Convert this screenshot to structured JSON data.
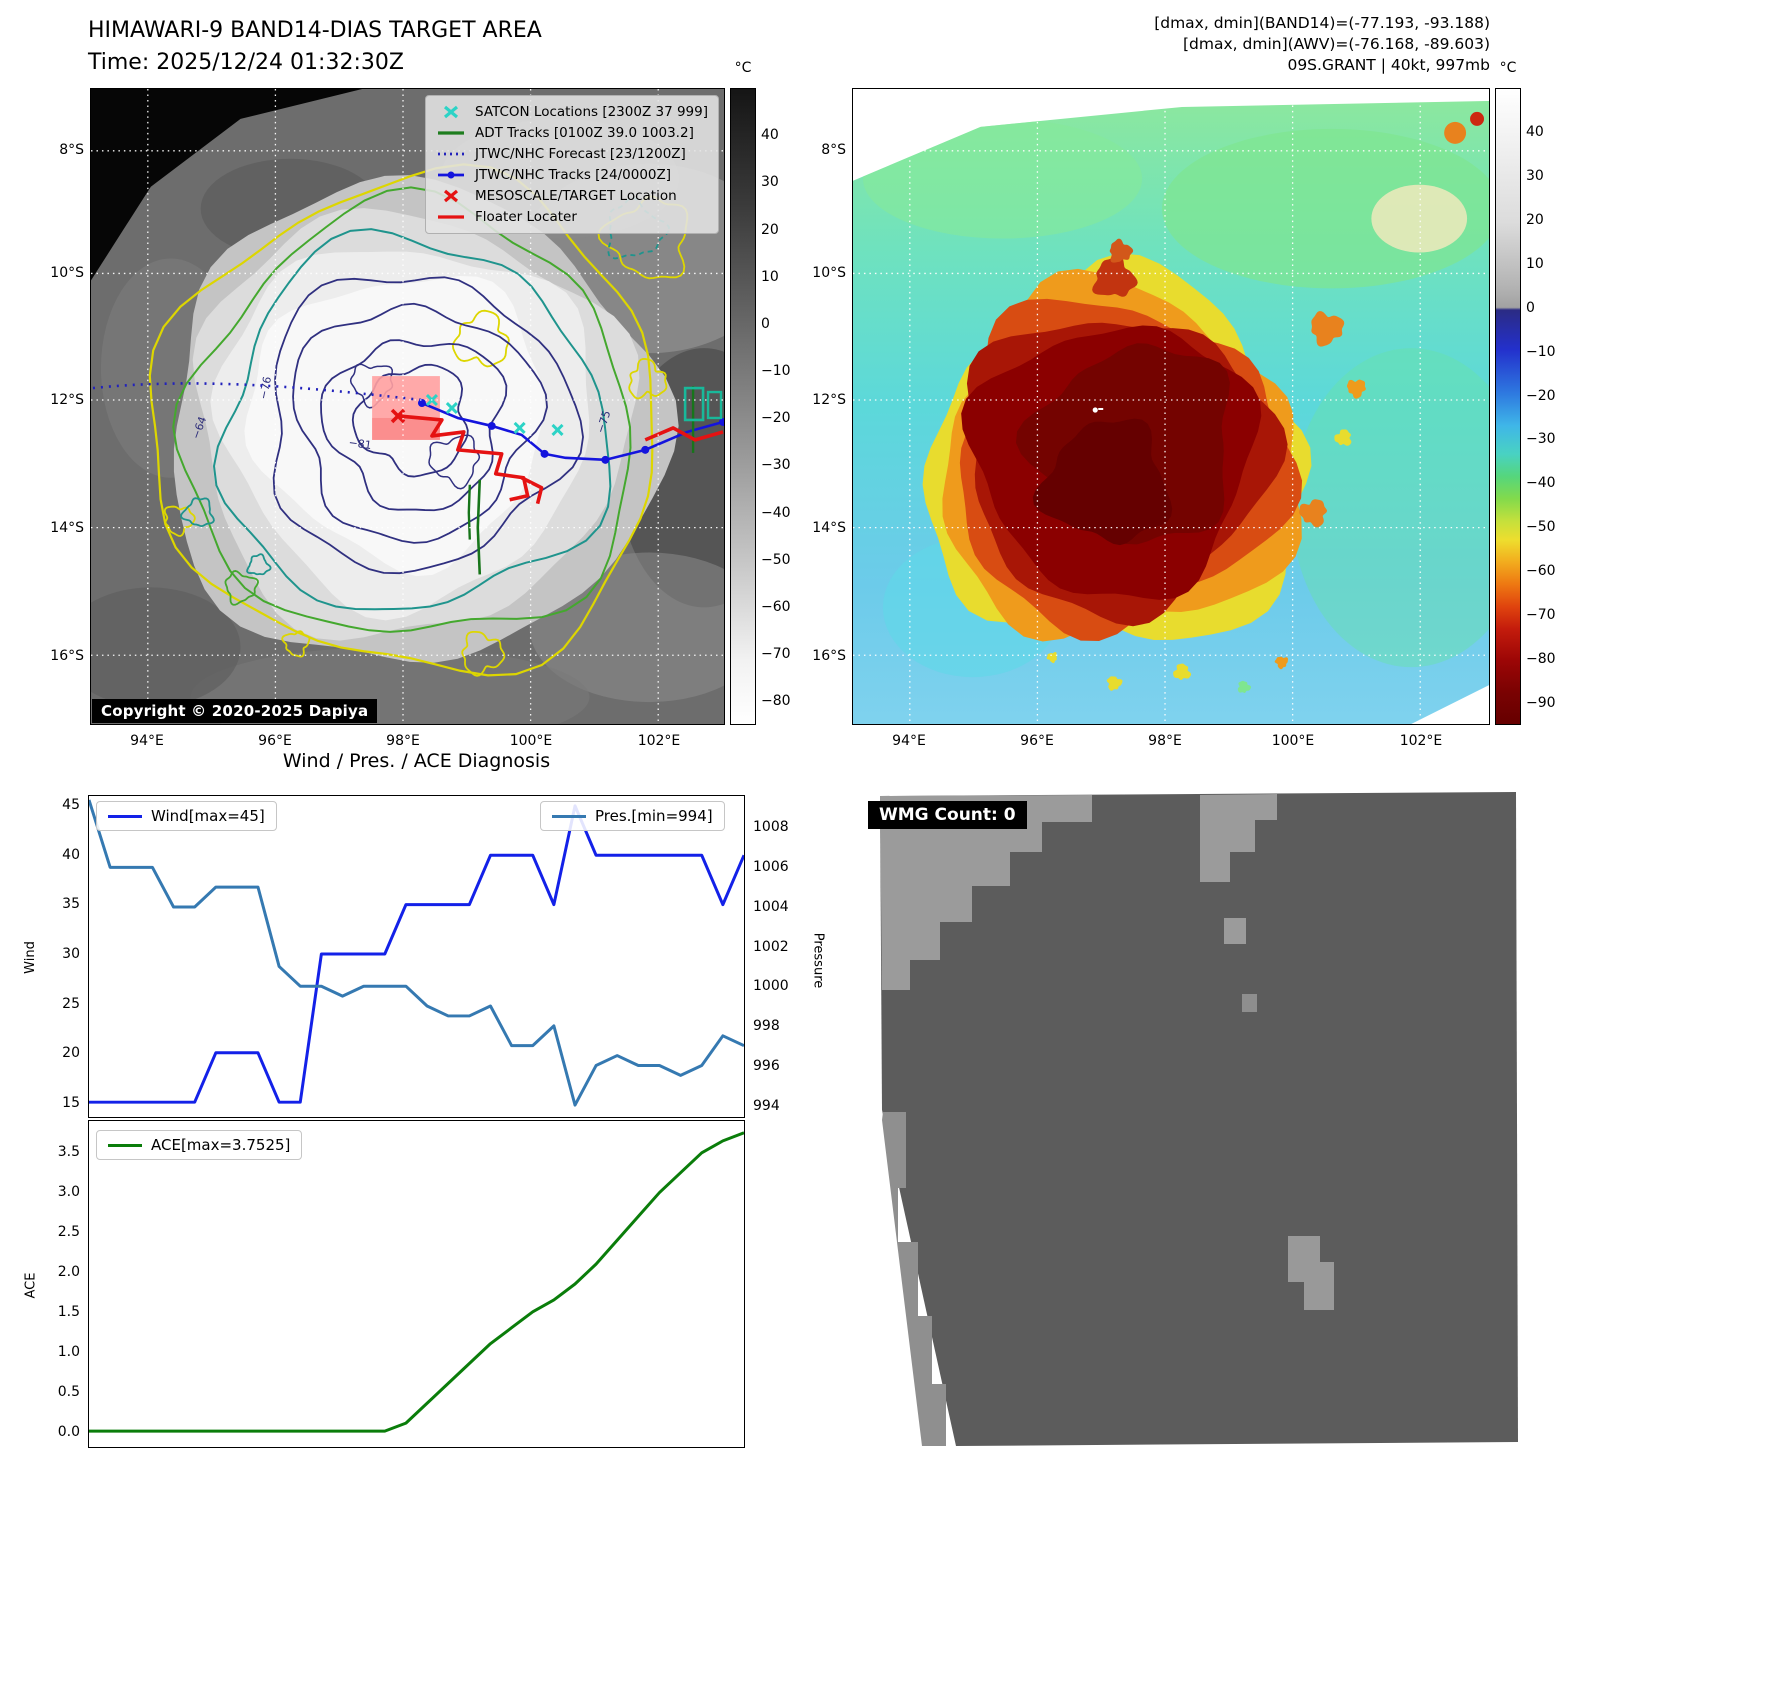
{
  "header": {
    "title": "HIMAWARI-9 BAND14-DIAS TARGET AREA",
    "time_line": "Time: 2025/12/24 01:32:30Z",
    "dminmax_band14": "[dmax, dmin](BAND14)=(-77.193, -93.188)",
    "dminmax_awv": "[dmax, dmin](AWV)=(-76.168, -89.603)",
    "storm_line": "09S.GRANT | 40kt, 997mb"
  },
  "band14_panel": {
    "legend_items": [
      {
        "label": "SATCON Locations [2300Z 37 999]",
        "marker": "x",
        "color": "#2cd3c6",
        "icon": "satcon-x-icon"
      },
      {
        "label": "ADT Tracks [0100Z 39.0 1003.2]",
        "marker": "line",
        "color": "#1e7d1e",
        "icon": "adt-line-icon"
      },
      {
        "label": "JTWC/NHC Forecast [23/1200Z]",
        "marker": "dotted",
        "color": "#2222bb",
        "icon": "forecast-dotted-line-icon"
      },
      {
        "label": "JTWC/NHC Tracks [24/0000Z]",
        "marker": "line-dot",
        "color": "#1414dd",
        "icon": "track-line-dot-icon"
      },
      {
        "label": "MESOSCALE/TARGET Location",
        "marker": "x",
        "color": "#e51212",
        "icon": "target-x-icon"
      },
      {
        "label": "Floater Locater",
        "marker": "line",
        "color": "#e51212",
        "icon": "floater-line-icon"
      }
    ],
    "copyright": "Copyright © 2020-2025 Dapiya",
    "contour_labels": [
      "-64",
      "-76",
      "-81",
      "-75"
    ],
    "lat_ticks": [
      "8°S",
      "10°S",
      "12°S",
      "14°S",
      "16°S"
    ],
    "lon_ticks": [
      "94°E",
      "96°E",
      "98°E",
      "100°E",
      "102°E"
    ],
    "colorbar_unit": "°C",
    "colorbar_ticks": [
      40,
      30,
      20,
      10,
      0,
      -10,
      -20,
      -30,
      -40,
      -50,
      -60,
      -70,
      -80
    ]
  },
  "awv_panel": {
    "lat_ticks": [
      "8°S",
      "10°S",
      "12°S",
      "14°S",
      "16°S"
    ],
    "lon_ticks": [
      "94°E",
      "96°E",
      "98°E",
      "100°E",
      "102°E"
    ],
    "colorbar_unit": "°C",
    "colorbar_ticks": [
      40,
      30,
      20,
      10,
      0,
      -10,
      -20,
      -30,
      -40,
      -50,
      -60,
      -70,
      -80,
      -90
    ]
  },
  "diagnosis_title": "Wind / Pres. / ACE Diagnosis",
  "wmg_panel": {
    "label": "WMG Count: 0"
  },
  "chart_data": [
    {
      "type": "line",
      "title": "Wind / Pres. / ACE Diagnosis",
      "x": [
        0,
        1,
        2,
        3,
        4,
        5,
        6,
        7,
        8,
        9,
        10,
        11,
        12,
        13,
        14,
        15,
        16,
        17,
        18,
        19,
        20,
        21,
        22,
        23,
        24,
        25,
        26,
        27,
        28,
        29,
        30,
        31
      ],
      "series": [
        {
          "name": "Wind[max=45]",
          "yaxis": "left",
          "color": "#1321e8",
          "values": [
            15,
            15,
            15,
            15,
            15,
            15,
            20,
            20,
            20,
            15,
            15,
            30,
            30,
            30,
            30,
            35,
            35,
            35,
            35,
            40,
            40,
            40,
            35,
            45,
            40,
            40,
            40,
            40,
            40,
            40,
            35,
            40
          ]
        },
        {
          "name": "Pres.[min=994]",
          "yaxis": "right",
          "color": "#3579b1",
          "values": [
            1009.4,
            1006,
            1006,
            1006,
            1004,
            1004,
            1005,
            1005,
            1005,
            1001,
            1000,
            1000,
            999.5,
            1000,
            1000,
            1000,
            999,
            998.5,
            998.5,
            999,
            997,
            997,
            998,
            994,
            996,
            996.5,
            996,
            996,
            995.5,
            996,
            997.5,
            997
          ]
        }
      ],
      "ylabel_left": "Wind",
      "ylim_left": [
        13.5,
        46
      ],
      "yticks_left": [
        15,
        20,
        25,
        30,
        35,
        40,
        45
      ],
      "ylabel_right": "Pressure",
      "ylim_right": [
        993.4,
        1009.6
      ],
      "yticks_right": [
        994,
        996,
        998,
        1000,
        1002,
        1004,
        1006,
        1008
      ],
      "grid": false,
      "legend_position": "upper-left and upper-right"
    },
    {
      "type": "line",
      "x": [
        0,
        1,
        2,
        3,
        4,
        5,
        6,
        7,
        8,
        9,
        10,
        11,
        12,
        13,
        14,
        15,
        16,
        17,
        18,
        19,
        20,
        21,
        22,
        23,
        24,
        25,
        26,
        27,
        28,
        29,
        30,
        31
      ],
      "series": [
        {
          "name": "ACE[max=3.7525]",
          "yaxis": "left",
          "color": "#0a7d0a",
          "values": [
            0,
            0,
            0,
            0,
            0,
            0,
            0,
            0,
            0,
            0,
            0,
            0,
            0,
            0,
            0,
            0.1,
            0.35,
            0.6,
            0.85,
            1.1,
            1.3,
            1.5,
            1.65,
            1.85,
            2.1,
            2.4,
            2.7,
            3.0,
            3.25,
            3.5,
            3.65,
            3.7525
          ]
        }
      ],
      "ylabel_left": "ACE",
      "ylim_left": [
        -0.2,
        3.9
      ],
      "yticks_left": [
        0.0,
        0.5,
        1.0,
        1.5,
        2.0,
        2.5,
        3.0,
        3.5
      ],
      "grid": false,
      "legend_position": "upper-left"
    }
  ]
}
